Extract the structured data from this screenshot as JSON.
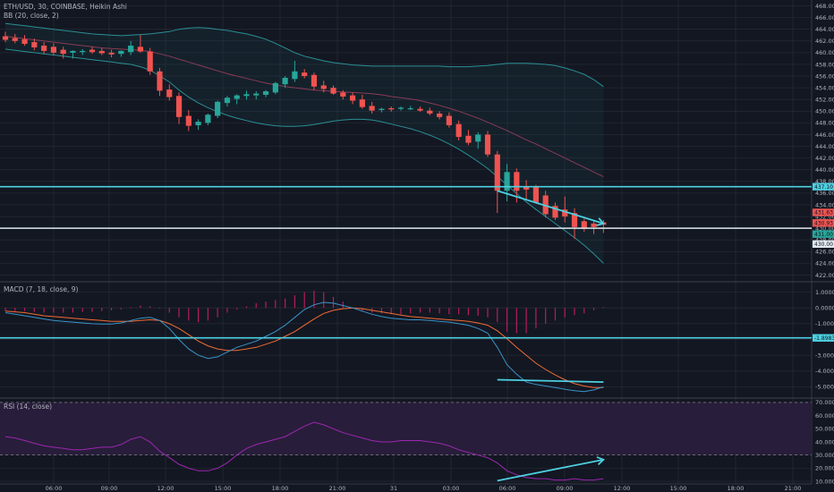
{
  "header": {
    "symbol": "ETH/USD, 30, COINBASE, Heikin Ashi",
    "bb_label": "BB (20, close, 2)",
    "macd_label": "MACD (7, 18, close, 9)",
    "rsi_label": "RSI (14, close)"
  },
  "colors": {
    "background": "#131722",
    "grid": "#2a2e39",
    "up": "#26a69a",
    "down": "#ef5350",
    "trendline": "#4dd0e1",
    "bb_band": "#2a8f93",
    "bb_basis": "#8b3a55",
    "macd_line": "#3a94c9",
    "signal_line": "#f06c34",
    "histogram": "#b71c5c",
    "rsi_line": "#9c27b0",
    "rsi_zone": "#2b1e3d"
  },
  "chart_data": [
    {
      "type": "candlestick",
      "panel": "price",
      "x_ticks": [
        "06:00",
        "09:00",
        "12:00",
        "15:00",
        "18:00",
        "21:00",
        "31",
        "03:00",
        "06:00",
        "09:00",
        "12:00",
        "15:00",
        "18:00",
        "21:00"
      ],
      "y_ticks": [
        422,
        424,
        426,
        428,
        430,
        432,
        434,
        436,
        438,
        440,
        442,
        444,
        446,
        448,
        450,
        452,
        454,
        456,
        458,
        460,
        462,
        464,
        466,
        468
      ],
      "ylim": [
        421,
        469
      ],
      "price_tags": [
        "437.10",
        "431.63",
        "430.93",
        "431.00",
        "430.00"
      ],
      "candles": [
        {
          "o": 462.8,
          "h": 463.6,
          "l": 461.8,
          "c": 462.2
        },
        {
          "o": 462.5,
          "h": 463.2,
          "l": 461.6,
          "c": 462.0
        },
        {
          "o": 462.3,
          "h": 463.0,
          "l": 461.2,
          "c": 461.5
        },
        {
          "o": 461.8,
          "h": 462.4,
          "l": 460.4,
          "c": 460.9
        },
        {
          "o": 461.2,
          "h": 461.8,
          "l": 459.8,
          "c": 460.3
        },
        {
          "o": 461.0,
          "h": 461.6,
          "l": 459.6,
          "c": 460.0
        },
        {
          "o": 460.5,
          "h": 461.0,
          "l": 459.0,
          "c": 459.8
        },
        {
          "o": 460.0,
          "h": 460.4,
          "l": 459.0,
          "c": 460.3
        },
        {
          "o": 460.1,
          "h": 460.6,
          "l": 459.6,
          "c": 460.3
        },
        {
          "o": 460.5,
          "h": 461.0,
          "l": 459.8,
          "c": 460.1
        },
        {
          "o": 460.3,
          "h": 460.8,
          "l": 459.6,
          "c": 459.9
        },
        {
          "o": 460.0,
          "h": 460.5,
          "l": 459.2,
          "c": 459.7
        },
        {
          "o": 459.8,
          "h": 460.4,
          "l": 459.3,
          "c": 460.3
        },
        {
          "o": 460.1,
          "h": 462.0,
          "l": 459.6,
          "c": 461.2
        },
        {
          "o": 461.0,
          "h": 463.0,
          "l": 460.0,
          "c": 460.2
        },
        {
          "o": 460.2,
          "h": 460.8,
          "l": 456.2,
          "c": 456.8
        },
        {
          "o": 456.8,
          "h": 457.4,
          "l": 452.6,
          "c": 453.5
        },
        {
          "o": 453.7,
          "h": 454.6,
          "l": 451.8,
          "c": 452.4
        },
        {
          "o": 452.6,
          "h": 453.2,
          "l": 447.8,
          "c": 449.0
        },
        {
          "o": 449.2,
          "h": 450.2,
          "l": 446.6,
          "c": 447.5
        },
        {
          "o": 447.6,
          "h": 448.6,
          "l": 446.8,
          "c": 448.2
        },
        {
          "o": 448.0,
          "h": 449.6,
          "l": 447.6,
          "c": 449.4
        },
        {
          "o": 449.2,
          "h": 451.8,
          "l": 448.8,
          "c": 451.6
        },
        {
          "o": 451.4,
          "h": 452.6,
          "l": 450.8,
          "c": 452.3
        },
        {
          "o": 452.1,
          "h": 452.9,
          "l": 451.2,
          "c": 452.7
        },
        {
          "o": 452.6,
          "h": 453.5,
          "l": 452.0,
          "c": 452.9
        },
        {
          "o": 452.7,
          "h": 453.4,
          "l": 452.0,
          "c": 453.0
        },
        {
          "o": 452.8,
          "h": 453.6,
          "l": 452.4,
          "c": 453.4
        },
        {
          "o": 453.2,
          "h": 455.0,
          "l": 452.9,
          "c": 454.8
        },
        {
          "o": 454.6,
          "h": 456.0,
          "l": 454.0,
          "c": 455.7
        },
        {
          "o": 455.5,
          "h": 458.6,
          "l": 455.0,
          "c": 456.8
        },
        {
          "o": 456.6,
          "h": 457.2,
          "l": 455.6,
          "c": 456.0
        },
        {
          "o": 456.2,
          "h": 456.6,
          "l": 453.6,
          "c": 454.2
        },
        {
          "o": 454.4,
          "h": 455.2,
          "l": 453.2,
          "c": 453.8
        },
        {
          "o": 454.0,
          "h": 454.4,
          "l": 452.8,
          "c": 453.0
        },
        {
          "o": 453.2,
          "h": 453.6,
          "l": 452.0,
          "c": 452.5
        },
        {
          "o": 452.7,
          "h": 453.2,
          "l": 451.2,
          "c": 451.8
        },
        {
          "o": 452.0,
          "h": 452.8,
          "l": 450.4,
          "c": 450.7
        },
        {
          "o": 450.9,
          "h": 451.6,
          "l": 449.6,
          "c": 450.1
        },
        {
          "o": 450.2,
          "h": 450.6,
          "l": 449.8,
          "c": 450.4
        },
        {
          "o": 450.5,
          "h": 450.8,
          "l": 449.9,
          "c": 450.3
        },
        {
          "o": 450.4,
          "h": 450.8,
          "l": 450.1,
          "c": 450.6
        },
        {
          "o": 450.5,
          "h": 450.9,
          "l": 450.2,
          "c": 450.5
        },
        {
          "o": 450.4,
          "h": 450.8,
          "l": 449.9,
          "c": 450.1
        },
        {
          "o": 450.1,
          "h": 450.6,
          "l": 449.3,
          "c": 449.6
        },
        {
          "o": 449.6,
          "h": 450.0,
          "l": 448.6,
          "c": 449.0
        },
        {
          "o": 449.2,
          "h": 449.8,
          "l": 447.2,
          "c": 447.6
        },
        {
          "o": 447.8,
          "h": 448.4,
          "l": 445.0,
          "c": 445.6
        },
        {
          "o": 445.8,
          "h": 446.8,
          "l": 444.2,
          "c": 444.6
        },
        {
          "o": 444.8,
          "h": 446.4,
          "l": 443.6,
          "c": 446.0
        },
        {
          "o": 446.0,
          "h": 446.6,
          "l": 442.2,
          "c": 442.6
        },
        {
          "o": 442.6,
          "h": 443.2,
          "l": 432.6,
          "c": 436.4
        },
        {
          "o": 436.4,
          "h": 441.0,
          "l": 434.6,
          "c": 439.6
        },
        {
          "o": 439.6,
          "h": 440.2,
          "l": 434.4,
          "c": 436.4
        },
        {
          "o": 437.2,
          "h": 438.2,
          "l": 435.0,
          "c": 436.6
        },
        {
          "o": 437.0,
          "h": 437.4,
          "l": 434.2,
          "c": 434.4
        },
        {
          "o": 435.6,
          "h": 436.4,
          "l": 431.8,
          "c": 432.4
        },
        {
          "o": 433.8,
          "h": 434.4,
          "l": 431.4,
          "c": 431.8
        },
        {
          "o": 433.2,
          "h": 435.4,
          "l": 431.0,
          "c": 432.0
        },
        {
          "o": 432.6,
          "h": 433.4,
          "l": 428.2,
          "c": 430.2
        },
        {
          "o": 431.2,
          "h": 431.6,
          "l": 429.4,
          "c": 430.0
        },
        {
          "o": 430.8,
          "h": 431.2,
          "l": 429.0,
          "c": 430.2
        },
        {
          "o": 431.0,
          "h": 431.4,
          "l": 429.2,
          "c": 430.6
        }
      ],
      "bb_upper": [
        465,
        464.8,
        464.6,
        464.4,
        464.2,
        464,
        463.8,
        463.6,
        463.4,
        463.2,
        463.1,
        463,
        462.9,
        463,
        463.1,
        463.2,
        463.4,
        463.6,
        464,
        464.2,
        464.3,
        464.2,
        464,
        463.8,
        463.5,
        463.2,
        462.8,
        462.3,
        461.6,
        460.8,
        460,
        459.4,
        459,
        458.6,
        458.3,
        458.1,
        457.9,
        457.8,
        457.7,
        457.7,
        457.7,
        457.7,
        457.7,
        457.7,
        457.7,
        457.7,
        457.6,
        457.6,
        457.6,
        457.7,
        457.8,
        458,
        458.2,
        458.2,
        458.2,
        458.1,
        458,
        457.8,
        457.4,
        456.9,
        456.3,
        455.4,
        454.2
      ],
      "bb_basis": [
        462.8,
        462.6,
        462.4,
        462.2,
        462,
        461.8,
        461.6,
        461.4,
        461.2,
        461,
        460.8,
        460.7,
        460.6,
        460.5,
        460.4,
        460.2,
        459.8,
        459.4,
        458.9,
        458.4,
        457.9,
        457.4,
        456.9,
        456.4,
        456,
        455.6,
        455.2,
        454.8,
        454.5,
        454.2,
        454,
        453.8,
        453.6,
        453.5,
        453.4,
        453.3,
        453.2,
        453.1,
        453,
        452.8,
        452.5,
        452.3,
        452.1,
        451.8,
        451.4,
        451,
        450.5,
        450,
        449.4,
        448.8,
        448.1,
        447.4,
        446.7,
        445.9,
        445.1,
        444.4,
        443.6,
        442.8,
        442,
        441.2,
        440.4,
        439.6,
        438.8
      ],
      "bb_lower": [
        460.6,
        460.4,
        460.2,
        460,
        459.8,
        459.6,
        459.4,
        459.2,
        459,
        458.8,
        458.6,
        458.4,
        458.2,
        458,
        457.6,
        457,
        456,
        455,
        453.6,
        452.4,
        451.4,
        450.6,
        449.9,
        449.3,
        448.8,
        448.4,
        448,
        447.7,
        447.5,
        447.4,
        447.4,
        447.5,
        447.7,
        448,
        448.3,
        448.5,
        448.6,
        448.6,
        448.5,
        448.2,
        447.8,
        447.4,
        447,
        446.5,
        445.9,
        445.2,
        444.4,
        443.5,
        442.5,
        441.4,
        440.2,
        438.8,
        437.4,
        435.9,
        434.5,
        433.2,
        432,
        430.8,
        429.6,
        428.4,
        427.1,
        425.6,
        424
      ]
    },
    {
      "type": "macd",
      "panel": "macd",
      "y_ticks": [
        1.0,
        0.0,
        -1.0,
        -2.0,
        -3.0,
        -4.0,
        -5.0
      ],
      "y_tick_labels": [
        "1.0000",
        "0.0000",
        "-1.0000",
        "-2.0000",
        "-3.0000",
        "-4.0000",
        "-5.0000"
      ],
      "ylim": [
        -5.6,
        1.6
      ],
      "price_tag": "-1.8983",
      "macd": [
        -0.3,
        -0.4,
        -0.5,
        -0.6,
        -0.7,
        -0.8,
        -0.85,
        -0.9,
        -0.95,
        -1.0,
        -1.02,
        -1.02,
        -0.95,
        -0.8,
        -0.65,
        -0.6,
        -0.8,
        -1.3,
        -2.0,
        -2.6,
        -3.0,
        -3.2,
        -3.1,
        -2.8,
        -2.5,
        -2.3,
        -2.1,
        -1.8,
        -1.5,
        -1.1,
        -0.6,
        -0.1,
        0.2,
        0.35,
        0.3,
        0.15,
        0.0,
        -0.2,
        -0.4,
        -0.55,
        -0.65,
        -0.7,
        -0.75,
        -0.75,
        -0.8,
        -0.85,
        -0.9,
        -1.0,
        -1.1,
        -1.3,
        -1.6,
        -2.5,
        -3.6,
        -4.2,
        -4.7,
        -4.85,
        -4.95,
        -5.05,
        -5.15,
        -5.25,
        -5.3,
        -5.2,
        -5.0
      ],
      "signal": [
        -0.2,
        -0.25,
        -0.3,
        -0.4,
        -0.5,
        -0.55,
        -0.6,
        -0.65,
        -0.7,
        -0.75,
        -0.8,
        -0.85,
        -0.85,
        -0.85,
        -0.8,
        -0.75,
        -0.8,
        -1.0,
        -1.3,
        -1.7,
        -2.1,
        -2.4,
        -2.6,
        -2.7,
        -2.7,
        -2.6,
        -2.5,
        -2.3,
        -2.1,
        -1.8,
        -1.5,
        -1.1,
        -0.7,
        -0.35,
        -0.15,
        -0.05,
        0.0,
        -0.05,
        -0.15,
        -0.25,
        -0.35,
        -0.45,
        -0.55,
        -0.6,
        -0.65,
        -0.7,
        -0.75,
        -0.8,
        -0.85,
        -0.95,
        -1.1,
        -1.45,
        -1.95,
        -2.5,
        -3.0,
        -3.5,
        -3.9,
        -4.25,
        -4.55,
        -4.8,
        -4.95,
        -5.05,
        -5.05
      ],
      "histogram": [
        -0.2,
        -0.2,
        -0.2,
        -0.25,
        -0.3,
        -0.3,
        -0.3,
        -0.3,
        -0.25,
        -0.25,
        -0.2,
        -0.15,
        -0.1,
        0.05,
        0.15,
        0.1,
        -0.05,
        -0.3,
        -0.6,
        -0.8,
        -0.9,
        -0.8,
        -0.6,
        -0.3,
        -0.1,
        0.1,
        0.3,
        0.4,
        0.5,
        0.6,
        0.8,
        1.0,
        1.1,
        1.0,
        0.7,
        0.4,
        0.0,
        -0.2,
        -0.3,
        -0.35,
        -0.4,
        -0.4,
        -0.35,
        -0.3,
        -0.3,
        -0.35,
        -0.4,
        -0.4,
        -0.45,
        -0.5,
        -0.6,
        -0.9,
        -1.5,
        -1.6,
        -1.6,
        -1.3,
        -1.0,
        -0.8,
        -0.6,
        -0.45,
        -0.35,
        -0.15,
        0.05
      ]
    },
    {
      "type": "line",
      "panel": "rsi",
      "y_ticks": [
        70,
        60,
        50,
        40,
        30,
        20,
        10
      ],
      "y_tick_labels": [
        "70.0000",
        "60.0000",
        "50.0000",
        "40.0000",
        "30.0000",
        "20.0000",
        "10.0000"
      ],
      "ylim": [
        8,
        72
      ],
      "overbought": 70,
      "oversold": 30,
      "rsi": [
        44,
        43,
        41,
        39,
        37,
        36,
        35,
        34,
        34,
        35,
        36,
        36,
        38,
        42,
        44,
        40,
        33,
        28,
        23,
        20,
        18,
        18,
        20,
        24,
        30,
        35,
        38,
        40,
        42,
        44,
        48,
        52,
        55,
        53,
        50,
        47,
        45,
        43,
        41,
        40,
        40,
        41,
        41,
        41,
        40,
        39,
        37,
        34,
        32,
        30,
        28,
        24,
        18,
        15,
        13,
        12,
        12,
        11,
        11,
        12,
        11,
        11,
        12
      ]
    }
  ],
  "annotations": {
    "price_hline_1": 437.1,
    "price_hline_2": 430.0,
    "macd_hline": -1.8983,
    "price_trend": {
      "from_index": 51,
      "from_value": 436.4,
      "to_index": 62,
      "to_value": 430.8
    },
    "macd_trend": {
      "from_index": 51,
      "from_value": -4.55,
      "to_index": 62,
      "to_value": -4.7
    },
    "rsi_trend": {
      "from_index": 51,
      "from_value": 10.5,
      "to_index": 62,
      "to_value": 26.5
    }
  }
}
